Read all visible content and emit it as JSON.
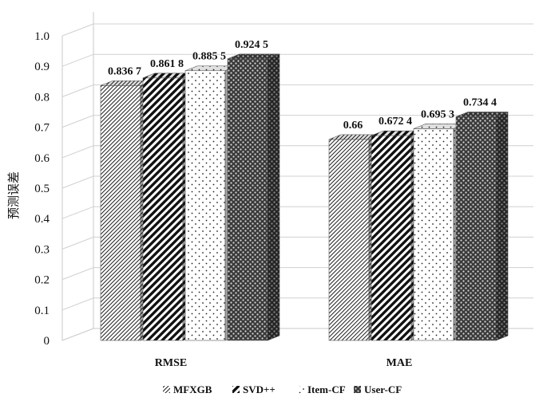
{
  "chart_data": {
    "type": "bar",
    "style": "3d-clustered",
    "title": "",
    "xlabel": "",
    "ylabel": "预测误差",
    "ylim": [
      0,
      1.0
    ],
    "yticks": [
      "0",
      "0.1",
      "0.2",
      "0.3",
      "0.4",
      "0.5",
      "0.6",
      "0.7",
      "0.8",
      "0.9",
      "1.0"
    ],
    "grid": true,
    "legend": "bottom",
    "categories": [
      "RMSE",
      "MAE"
    ],
    "series": [
      {
        "name": "MFXGB",
        "pattern": "diagonal-thin",
        "values": [
          0.8367,
          0.66
        ],
        "labels": [
          "0.836 7",
          "0.66"
        ]
      },
      {
        "name": "SVD++",
        "pattern": "diagonal-thick",
        "values": [
          0.8618,
          0.6724
        ],
        "labels": [
          "0.861 8",
          "0.672 4"
        ]
      },
      {
        "name": "Item-CF",
        "pattern": "dots",
        "values": [
          0.8855,
          0.6953
        ],
        "labels": [
          "0.885 5",
          "0.695 3"
        ]
      },
      {
        "name": "User-CF",
        "pattern": "checker-dark",
        "values": [
          0.9245,
          0.7344
        ],
        "labels": [
          "0.924 5",
          "0.734 4"
        ]
      }
    ]
  }
}
